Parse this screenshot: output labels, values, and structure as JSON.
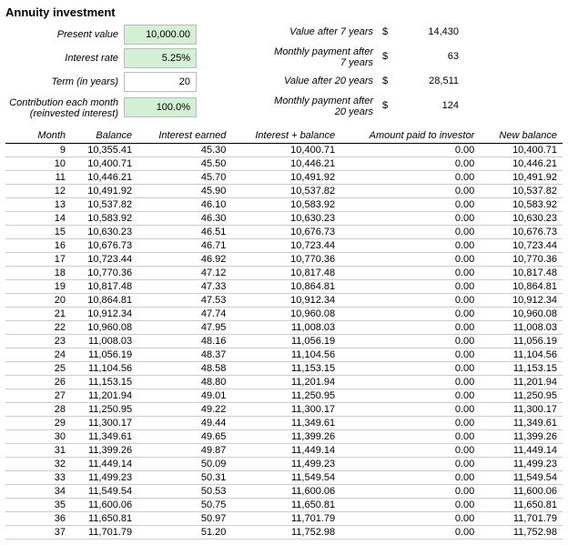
{
  "title": "Annuity investment",
  "inputs": {
    "present_value": {
      "label": "Present value",
      "value": "10,000.00",
      "highlight": true
    },
    "interest_rate": {
      "label": "Interest rate",
      "value": "5.25%",
      "highlight": true
    },
    "term": {
      "label": "Term (in years)",
      "value": "20",
      "highlight": false
    },
    "contribution": {
      "label_line1": "Contribution each month",
      "label_line2": "(reinvested interest)",
      "value": "100.0%",
      "highlight": true
    }
  },
  "outputs": {
    "val_7": {
      "label": "Value after 7 years",
      "currency": "$",
      "value": "14,430"
    },
    "pay_7": {
      "label_line1": "Monthly payment after",
      "label_line2": "7 years",
      "currency": "$",
      "value": "63"
    },
    "val_20": {
      "label": "Value after 20 years",
      "currency": "$",
      "value": "28,511"
    },
    "pay_20": {
      "label_line1": "Monthly payment after",
      "label_line2": "20 years",
      "currency": "$",
      "value": "124"
    }
  },
  "table": {
    "columns": [
      "Month",
      "Balance",
      "Interest earned",
      "Interest + balance",
      "Amount paid to investor",
      "New balance"
    ],
    "rows": [
      [
        "9",
        "10,355.41",
        "45.30",
        "10,400.71",
        "0.00",
        "10,400.71"
      ],
      [
        "10",
        "10,400.71",
        "45.50",
        "10,446.21",
        "0.00",
        "10,446.21"
      ],
      [
        "11",
        "10,446.21",
        "45.70",
        "10,491.92",
        "0.00",
        "10,491.92"
      ],
      [
        "12",
        "10,491.92",
        "45.90",
        "10,537.82",
        "0.00",
        "10,537.82"
      ],
      [
        "13",
        "10,537.82",
        "46.10",
        "10,583.92",
        "0.00",
        "10,583.92"
      ],
      [
        "14",
        "10,583.92",
        "46.30",
        "10,630.23",
        "0.00",
        "10,630.23"
      ],
      [
        "15",
        "10,630.23",
        "46.51",
        "10,676.73",
        "0.00",
        "10,676.73"
      ],
      [
        "16",
        "10,676.73",
        "46.71",
        "10,723.44",
        "0.00",
        "10,723.44"
      ],
      [
        "17",
        "10,723.44",
        "46.92",
        "10,770.36",
        "0.00",
        "10,770.36"
      ],
      [
        "18",
        "10,770.36",
        "47.12",
        "10,817.48",
        "0.00",
        "10,817.48"
      ],
      [
        "19",
        "10,817.48",
        "47.33",
        "10,864.81",
        "0.00",
        "10,864.81"
      ],
      [
        "20",
        "10,864.81",
        "47.53",
        "10,912.34",
        "0.00",
        "10,912.34"
      ],
      [
        "21",
        "10,912.34",
        "47.74",
        "10,960.08",
        "0.00",
        "10,960.08"
      ],
      [
        "22",
        "10,960.08",
        "47.95",
        "11,008.03",
        "0.00",
        "11,008.03"
      ],
      [
        "23",
        "11,008.03",
        "48.16",
        "11,056.19",
        "0.00",
        "11,056.19"
      ],
      [
        "24",
        "11,056.19",
        "48.37",
        "11,104.56",
        "0.00",
        "11,104.56"
      ],
      [
        "25",
        "11,104.56",
        "48.58",
        "11,153.15",
        "0.00",
        "11,153.15"
      ],
      [
        "26",
        "11,153.15",
        "48.80",
        "11,201.94",
        "0.00",
        "11,201.94"
      ],
      [
        "27",
        "11,201.94",
        "49.01",
        "11,250.95",
        "0.00",
        "11,250.95"
      ],
      [
        "28",
        "11,250.95",
        "49.22",
        "11,300.17",
        "0.00",
        "11,300.17"
      ],
      [
        "29",
        "11,300.17",
        "49.44",
        "11,349.61",
        "0.00",
        "11,349.61"
      ],
      [
        "30",
        "11,349.61",
        "49.65",
        "11,399.26",
        "0.00",
        "11,399.26"
      ],
      [
        "31",
        "11,399.26",
        "49.87",
        "11,449.14",
        "0.00",
        "11,449.14"
      ],
      [
        "32",
        "11,449.14",
        "50.09",
        "11,499.23",
        "0.00",
        "11,499.23"
      ],
      [
        "33",
        "11,499.23",
        "50.31",
        "11,549.54",
        "0.00",
        "11,549.54"
      ],
      [
        "34",
        "11,549.54",
        "50.53",
        "11,600.06",
        "0.00",
        "11,600.06"
      ],
      [
        "35",
        "11,600.06",
        "50.75",
        "11,650.81",
        "0.00",
        "11,650.81"
      ],
      [
        "36",
        "11,650.81",
        "50.97",
        "11,701.79",
        "0.00",
        "11,701.79"
      ],
      [
        "37",
        "11,701.79",
        "51.20",
        "11,752.98",
        "0.00",
        "11,752.98"
      ]
    ]
  }
}
